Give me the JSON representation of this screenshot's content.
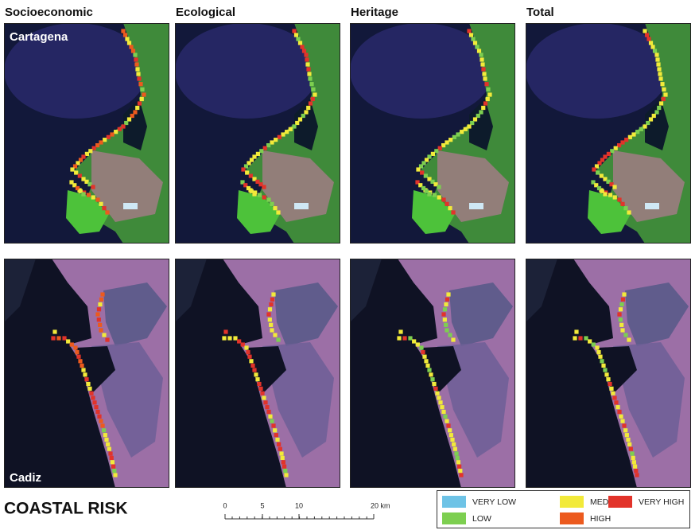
{
  "columns": [
    "Socioeconomic",
    "Ecological",
    "Heritage",
    "Total"
  ],
  "rows": [
    "Cartagena",
    "Cadiz"
  ],
  "title": "COASTAL RISK",
  "scale_bar": {
    "labels": [
      "0",
      "5",
      "10",
      "20 km"
    ]
  },
  "legend": [
    {
      "label": "VERY LOW",
      "color": "#6ec3e6"
    },
    {
      "label": "MEDIUM",
      "color": "#f2ea3a"
    },
    {
      "label": "VERY HIGH",
      "color": "#e2332a"
    },
    {
      "label": "LOW",
      "color": "#7dcf50"
    },
    {
      "label": "HIGH",
      "color": "#ec5a1e"
    }
  ]
}
